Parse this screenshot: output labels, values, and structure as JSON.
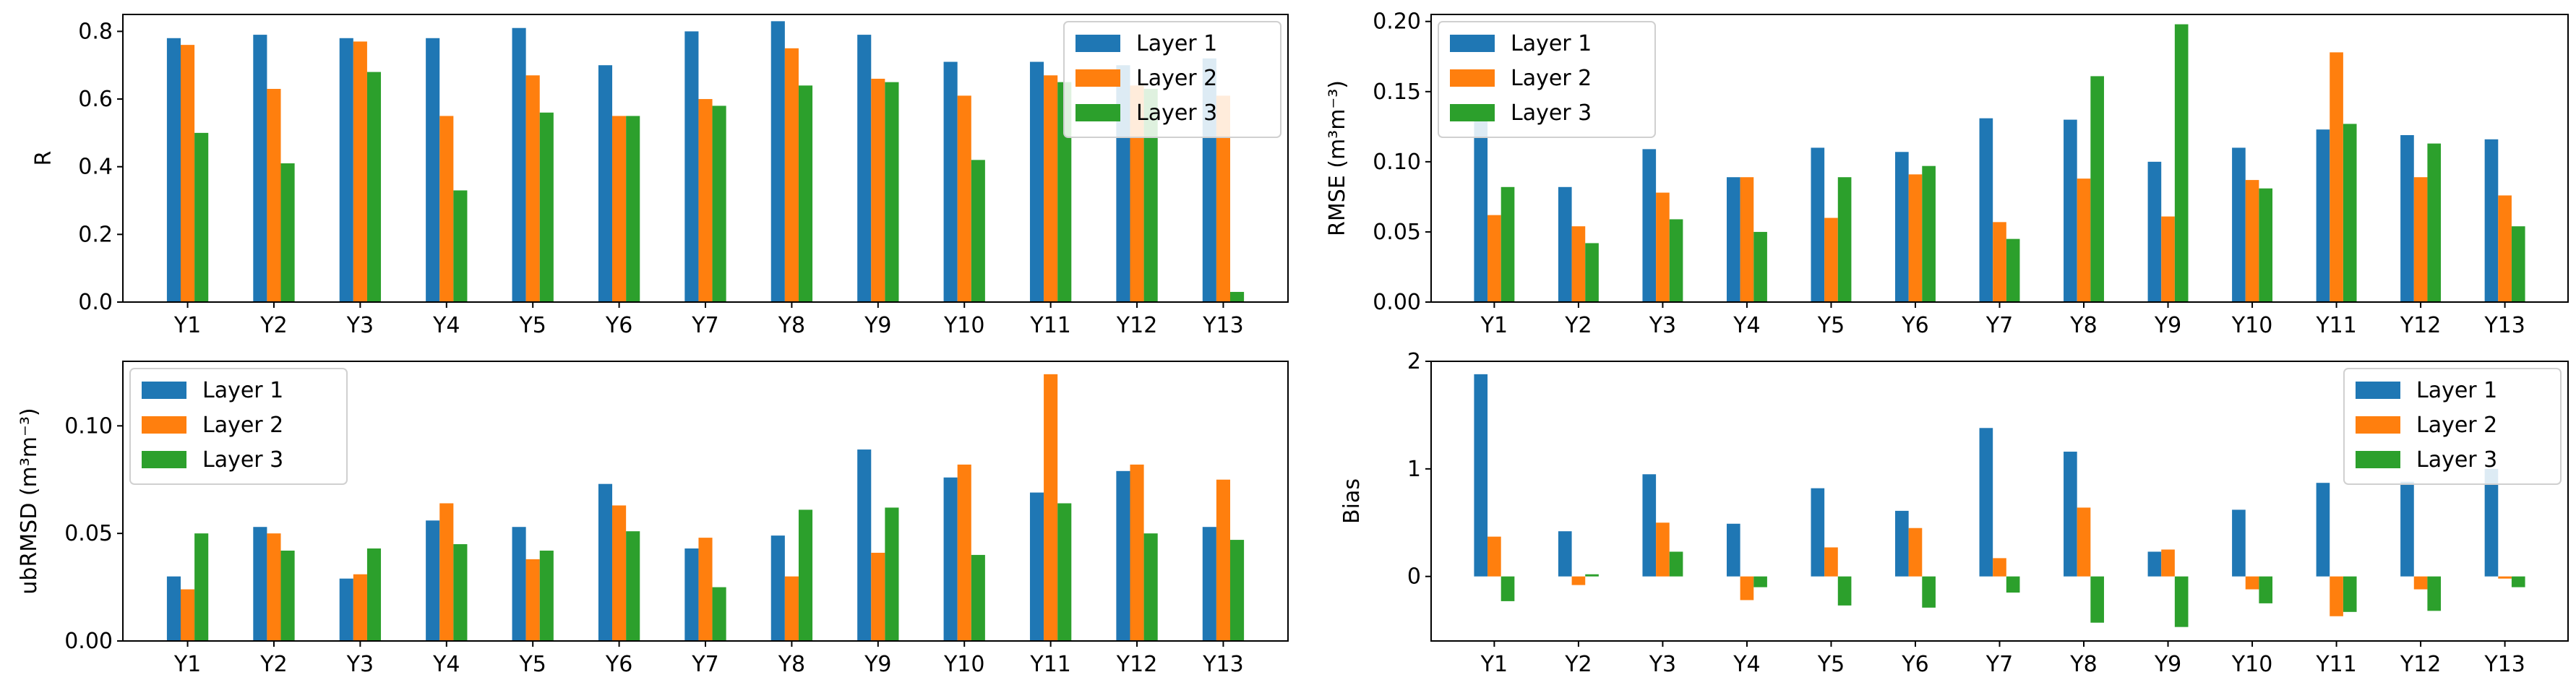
{
  "colors": {
    "layer1": "#1f77b4",
    "layer2": "#ff7f0e",
    "layer3": "#2ca02c"
  },
  "chart_data": [
    {
      "type": "bar",
      "title": "",
      "xlabel": "",
      "ylabel": "R",
      "ylim": [
        0,
        0.85
      ],
      "yticks": [
        0.0,
        0.2,
        0.4,
        0.6,
        0.8
      ],
      "ytick_labels": [
        "0.0",
        "0.2",
        "0.4",
        "0.6",
        "0.8"
      ],
      "legend_position": "top-right",
      "categories": [
        "Y1",
        "Y2",
        "Y3",
        "Y4",
        "Y5",
        "Y6",
        "Y7",
        "Y8",
        "Y9",
        "Y10",
        "Y11",
        "Y12",
        "Y13"
      ],
      "series": [
        {
          "name": "Layer 1",
          "values": [
            0.78,
            0.79,
            0.78,
            0.78,
            0.81,
            0.7,
            0.8,
            0.83,
            0.79,
            0.71,
            0.71,
            0.7,
            0.72
          ]
        },
        {
          "name": "Layer 2",
          "values": [
            0.76,
            0.63,
            0.77,
            0.55,
            0.67,
            0.55,
            0.6,
            0.75,
            0.66,
            0.61,
            0.67,
            0.64,
            0.61
          ]
        },
        {
          "name": "Layer 3",
          "values": [
            0.5,
            0.41,
            0.68,
            0.33,
            0.56,
            0.55,
            0.58,
            0.64,
            0.65,
            0.42,
            0.65,
            0.63,
            0.03
          ]
        }
      ]
    },
    {
      "type": "bar",
      "title": "",
      "xlabel": "",
      "ylabel": "RMSE (m³m⁻³)",
      "ylim": [
        0,
        0.205
      ],
      "yticks": [
        0.0,
        0.05,
        0.1,
        0.15,
        0.2
      ],
      "ytick_labels": [
        "0.00",
        "0.05",
        "0.10",
        "0.15",
        "0.20"
      ],
      "legend_position": "top-left",
      "categories": [
        "Y1",
        "Y2",
        "Y3",
        "Y4",
        "Y5",
        "Y6",
        "Y7",
        "Y8",
        "Y9",
        "Y10",
        "Y11",
        "Y12",
        "Y13"
      ],
      "series": [
        {
          "name": "Layer 1",
          "values": [
            0.14,
            0.082,
            0.109,
            0.089,
            0.11,
            0.107,
            0.131,
            0.13,
            0.1,
            0.11,
            0.123,
            0.119,
            0.116
          ]
        },
        {
          "name": "Layer 2",
          "values": [
            0.062,
            0.054,
            0.078,
            0.089,
            0.06,
            0.091,
            0.057,
            0.088,
            0.061,
            0.087,
            0.178,
            0.089,
            0.076
          ]
        },
        {
          "name": "Layer 3",
          "values": [
            0.082,
            0.042,
            0.059,
            0.05,
            0.089,
            0.097,
            0.045,
            0.161,
            0.198,
            0.081,
            0.127,
            0.113,
            0.054
          ]
        }
      ]
    },
    {
      "type": "bar",
      "title": "",
      "xlabel": "",
      "ylabel": "ubRMSD (m³m⁻³)",
      "ylim": [
        0,
        0.13
      ],
      "yticks": [
        0.0,
        0.05,
        0.1
      ],
      "ytick_labels": [
        "0.00",
        "0.05",
        "0.10"
      ],
      "legend_position": "top-left",
      "categories": [
        "Y1",
        "Y2",
        "Y3",
        "Y4",
        "Y5",
        "Y6",
        "Y7",
        "Y8",
        "Y9",
        "Y10",
        "Y11",
        "Y12",
        "Y13"
      ],
      "series": [
        {
          "name": "Layer 1",
          "values": [
            0.03,
            0.053,
            0.029,
            0.056,
            0.053,
            0.073,
            0.043,
            0.049,
            0.089,
            0.076,
            0.069,
            0.079,
            0.053
          ]
        },
        {
          "name": "Layer 2",
          "values": [
            0.024,
            0.05,
            0.031,
            0.064,
            0.038,
            0.063,
            0.048,
            0.03,
            0.041,
            0.082,
            0.124,
            0.082,
            0.075
          ]
        },
        {
          "name": "Layer 3",
          "values": [
            0.05,
            0.042,
            0.043,
            0.045,
            0.042,
            0.051,
            0.025,
            0.061,
            0.062,
            0.04,
            0.064,
            0.05,
            0.047
          ]
        }
      ]
    },
    {
      "type": "bar",
      "title": "",
      "xlabel": "",
      "ylabel": "Bias",
      "ylim": [
        -0.6,
        2.0
      ],
      "yticks": [
        0,
        1,
        2
      ],
      "ytick_labels": [
        "0",
        "1",
        "2"
      ],
      "legend_position": "top-right",
      "categories": [
        "Y1",
        "Y2",
        "Y3",
        "Y4",
        "Y5",
        "Y6",
        "Y7",
        "Y8",
        "Y9",
        "Y10",
        "Y11",
        "Y12",
        "Y13"
      ],
      "series": [
        {
          "name": "Layer 1",
          "values": [
            1.88,
            0.42,
            0.95,
            0.49,
            0.82,
            0.61,
            1.38,
            1.16,
            0.23,
            0.62,
            0.87,
            0.88,
            1.0
          ]
        },
        {
          "name": "Layer 2",
          "values": [
            0.37,
            -0.08,
            0.5,
            -0.22,
            0.27,
            0.45,
            0.17,
            0.64,
            0.25,
            -0.12,
            -0.37,
            -0.12,
            -0.02
          ]
        },
        {
          "name": "Layer 3",
          "values": [
            -0.23,
            0.02,
            0.23,
            -0.1,
            -0.27,
            -0.29,
            -0.15,
            -0.43,
            -0.47,
            -0.25,
            -0.33,
            -0.32,
            -0.1
          ]
        }
      ]
    }
  ]
}
